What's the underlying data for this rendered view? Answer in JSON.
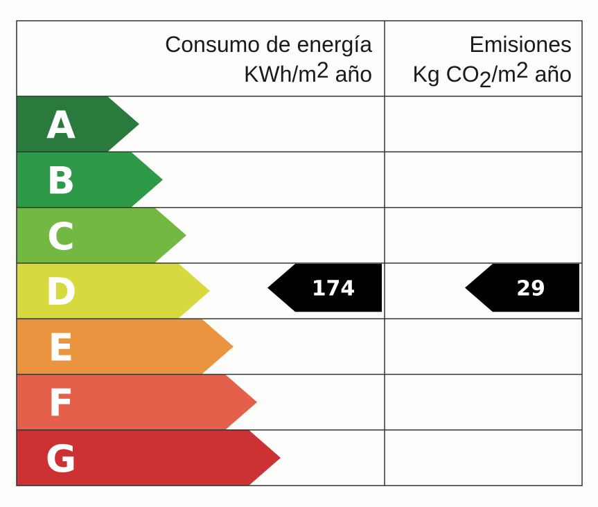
{
  "header": {
    "energy_title": "Consumo de energía",
    "energy_unit_prefix": "KWh/m",
    "energy_unit_sup": "2",
    "energy_unit_suffix": " año",
    "emissions_title": "Emisiones",
    "emissions_unit_prefix": "Kg CO",
    "emissions_unit_sub": "2",
    "emissions_unit_mid": "/m",
    "emissions_unit_sup": "2",
    "emissions_unit_suffix": " año"
  },
  "chart_data": {
    "type": "table",
    "ratings": [
      {
        "letter": "A",
        "color": "#2a7a3e"
      },
      {
        "letter": "B",
        "color": "#2e9a48"
      },
      {
        "letter": "C",
        "color": "#73b843"
      },
      {
        "letter": "D",
        "color": "#d8d93e"
      },
      {
        "letter": "E",
        "color": "#eb9440"
      },
      {
        "letter": "F",
        "color": "#e5604a"
      },
      {
        "letter": "G",
        "color": "#cc3233"
      }
    ],
    "energy": {
      "rating": "D",
      "value": "174"
    },
    "emissions": {
      "rating": "D",
      "value": "29"
    },
    "indicator_color": "#000000",
    "grid_color": "#333333"
  }
}
